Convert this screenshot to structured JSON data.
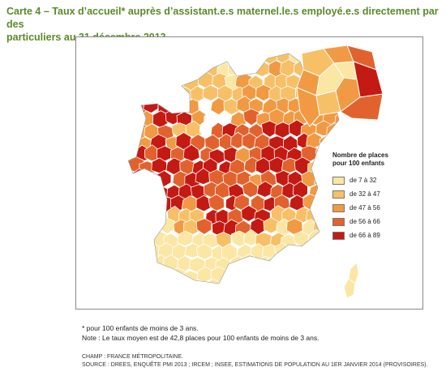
{
  "header": {
    "title_line1": "Carte 4 – Taux d’accueil* auprès d’assistant.e.s maternel.le.s employé.e.s directement par des",
    "title_line2": "particuliers au 31 décembre 2013"
  },
  "legend": {
    "title_line1": "Nombre de places",
    "title_line2": "pour 100 enfants",
    "items": [
      {
        "label": "de 7 à 32",
        "color": "#fbe6a4"
      },
      {
        "label": "de 32 à 47",
        "color": "#f7c067"
      },
      {
        "label": "de 47 à 56",
        "color": "#f19a43"
      },
      {
        "label": "de 56 à 66",
        "color": "#e2622e"
      },
      {
        "label": "de 66 à 89",
        "color": "#c41a14"
      }
    ]
  },
  "notes": {
    "footnote": "* pour 100 enfants de moins de 3 ans.",
    "average": "Note : Le taux moyen est de 42,8 places pour 100 enfants de moins de 3 ans."
  },
  "sources": {
    "champ": "CHAMP : FRANCE MÉTROPOLITAINE.",
    "source": "SOURCE : DREES, ENQUÊTE PMI 2013 ; IRCEM ; INSEE, ESTIMATIONS DE POPULATION AU 1ER JANVIER 2014 (PROVISOIRES)."
  },
  "colors": {
    "title": "#5a8a2a",
    "border": "#ffffff",
    "paris": "#ffffff"
  }
}
